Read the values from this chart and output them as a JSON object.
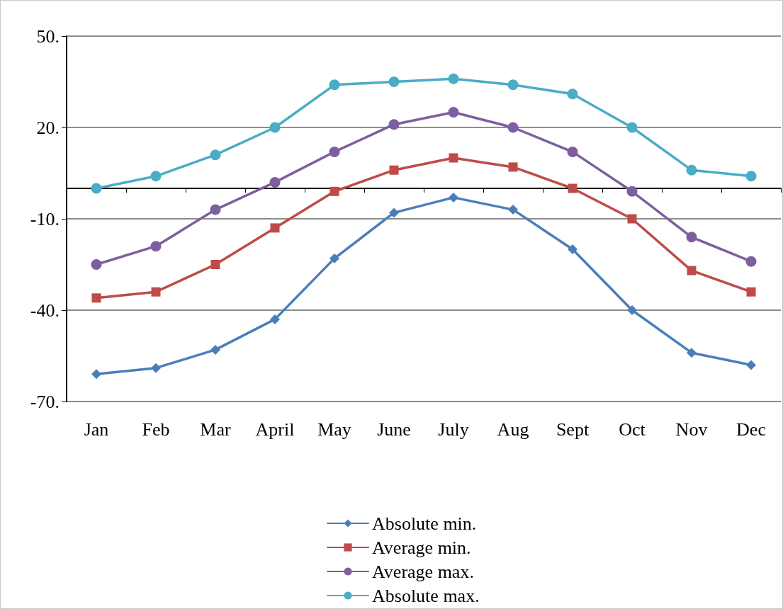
{
  "chart_data": {
    "type": "line",
    "categories": [
      "Jan",
      "Feb",
      "Mar",
      "April",
      "May",
      "June",
      "July",
      "Aug",
      "Sept",
      "Oct",
      "Nov",
      "Dec"
    ],
    "series": [
      {
        "name": "Absolute min.",
        "color": "#4a7ebb",
        "marker": "diamond",
        "values": [
          -61,
          -59,
          -53,
          -43,
          -23,
          -8,
          -3,
          -7,
          -20,
          -40,
          -54,
          -58
        ]
      },
      {
        "name": "Average min.",
        "color": "#be4b48",
        "marker": "square",
        "values": [
          -36,
          -34,
          -25,
          -13,
          -1,
          6,
          10,
          7,
          0,
          -10,
          -27,
          -34
        ]
      },
      {
        "name": "Average max.",
        "color": "#7d5fa0",
        "marker": "circle",
        "values": [
          -25,
          -19,
          -7,
          2,
          12,
          21,
          25,
          20,
          12,
          -1,
          -16,
          -24
        ]
      },
      {
        "name": "Absolute max.",
        "color": "#4bacc6",
        "marker": "circle",
        "values": [
          0,
          4,
          11,
          20,
          34,
          35,
          36,
          34,
          31,
          20,
          6,
          4
        ]
      }
    ],
    "ylim": [
      -70,
      50
    ],
    "yticks": [
      {
        "value": -70,
        "label": "-70."
      },
      {
        "value": -40,
        "label": "-40."
      },
      {
        "value": -10,
        "label": "-10."
      },
      {
        "value": 20,
        "label": "20."
      },
      {
        "value": 50,
        "label": "50."
      }
    ],
    "grid": "y",
    "legend": "bottom",
    "line_style": "solid"
  }
}
